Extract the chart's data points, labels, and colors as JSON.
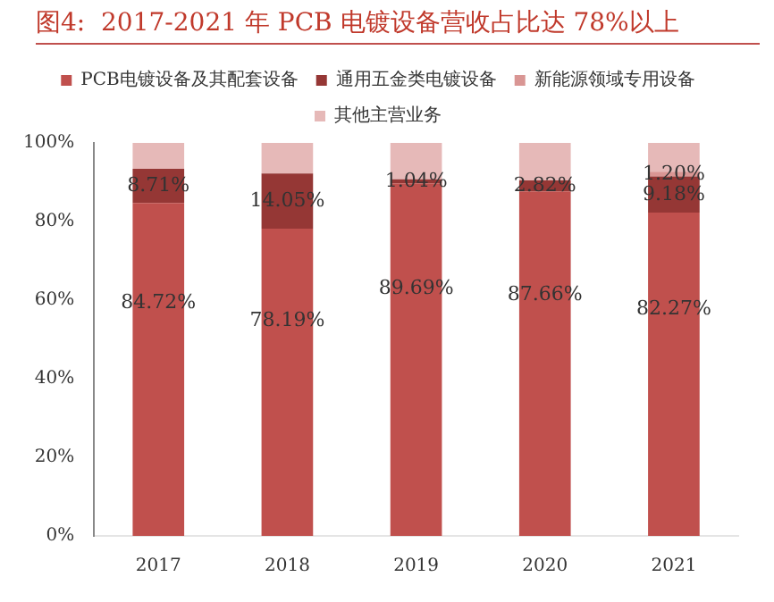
{
  "chart_data": {
    "type": "bar",
    "stacked": true,
    "title": "图4:  2017-2021 年 PCB 电镀设备营收占比达 78%以上",
    "categories": [
      "2017",
      "2018",
      "2019",
      "2020",
      "2021"
    ],
    "series": [
      {
        "name": "PCB电镀设备及其配套设备",
        "color": "#c0504d",
        "values": [
          84.72,
          78.19,
          89.69,
          87.66,
          82.27
        ],
        "value_labels": [
          "84.72%",
          "78.19%",
          "89.69%",
          "87.66%",
          "82.27%"
        ]
      },
      {
        "name": "通用五金类电镀设备",
        "color": "#953735",
        "values": [
          8.71,
          14.05,
          1.04,
          2.82,
          9.18
        ],
        "value_labels": [
          "8.71%",
          "14.05%",
          "1.04%",
          "2.82%",
          "9.18%"
        ]
      },
      {
        "name": "新能源领域专用设备",
        "color": "#d99694",
        "values": [
          null,
          null,
          null,
          null,
          1.2
        ],
        "value_labels": [
          null,
          null,
          null,
          null,
          "1.20%"
        ]
      },
      {
        "name": "其他主营业务",
        "color": "#e6b9b8",
        "values": [
          6.57,
          7.76,
          9.27,
          9.52,
          7.35
        ]
      }
    ],
    "ylim": [
      0,
      100
    ],
    "yticks": [
      {
        "value": 0,
        "label": "0%"
      },
      {
        "value": 20,
        "label": "20%"
      },
      {
        "value": 40,
        "label": "40%"
      },
      {
        "value": 60,
        "label": "60%"
      },
      {
        "value": 80,
        "label": "80%"
      },
      {
        "value": 100,
        "label": "100%"
      }
    ],
    "grid": false,
    "legend": "top"
  }
}
